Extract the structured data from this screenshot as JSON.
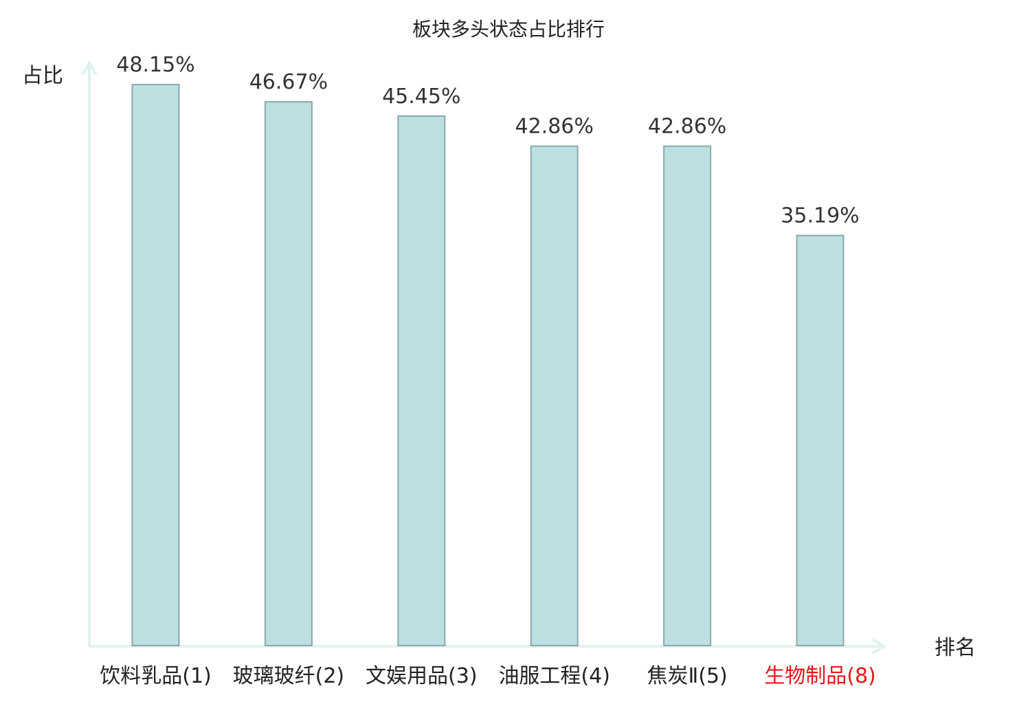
{
  "chart_data": {
    "type": "bar",
    "title": "板块多头状态占比排行",
    "xlabel": "排名",
    "ylabel": "占比",
    "categories": [
      "饮料乳品(1)",
      "玻璃玻纤(2)",
      "文娱用品(3)",
      "油服工程(4)",
      "焦炭Ⅱ(5)",
      "生物制品(8)"
    ],
    "values": [
      48.15,
      46.67,
      45.45,
      42.86,
      42.86,
      35.19
    ],
    "value_labels": [
      "48.15%",
      "46.67%",
      "45.45%",
      "42.86%",
      "42.86%",
      "35.19%"
    ],
    "ylim": [
      0,
      48.15
    ],
    "grid": false,
    "colors": {
      "bar_fill": "#bce0e2",
      "bar_stroke": "#8aa8aa",
      "axis": "#dff2f0",
      "category_default": "#222222",
      "category_highlight": "#e8161a"
    },
    "highlight_index": 5
  }
}
